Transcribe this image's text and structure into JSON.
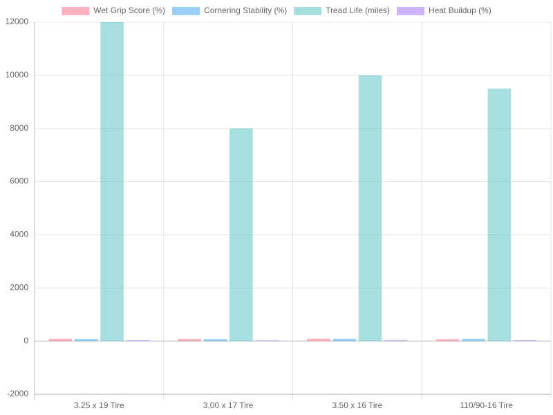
{
  "chart_data": {
    "type": "bar",
    "categories": [
      "3.25 x 19 Tire",
      "3.00 x 17 Tire",
      "3.50 x 16 Tire",
      "110/90-16 Tire"
    ],
    "series": [
      {
        "name": "Wet Grip Score (%)",
        "color": "rgba(255,99,132,0.5)",
        "values": [
          85,
          78,
          90,
          72
        ]
      },
      {
        "name": "Cornering Stability (%)",
        "color": "rgba(54,162,235,0.5)",
        "values": [
          80,
          75,
          88,
          82
        ]
      },
      {
        "name": "Tread Life (miles)",
        "color": "rgba(75,192,192,0.5)",
        "values": [
          12000,
          8000,
          10000,
          9500
        ]
      },
      {
        "name": "Heat Buildup (%)",
        "color": "rgba(153,102,255,0.5)",
        "values": [
          30,
          25,
          35,
          28
        ]
      }
    ],
    "ylim": [
      -2000,
      12000
    ],
    "yticks": [
      -2000,
      0,
      2000,
      4000,
      6000,
      8000,
      10000,
      12000
    ],
    "grid": true
  }
}
